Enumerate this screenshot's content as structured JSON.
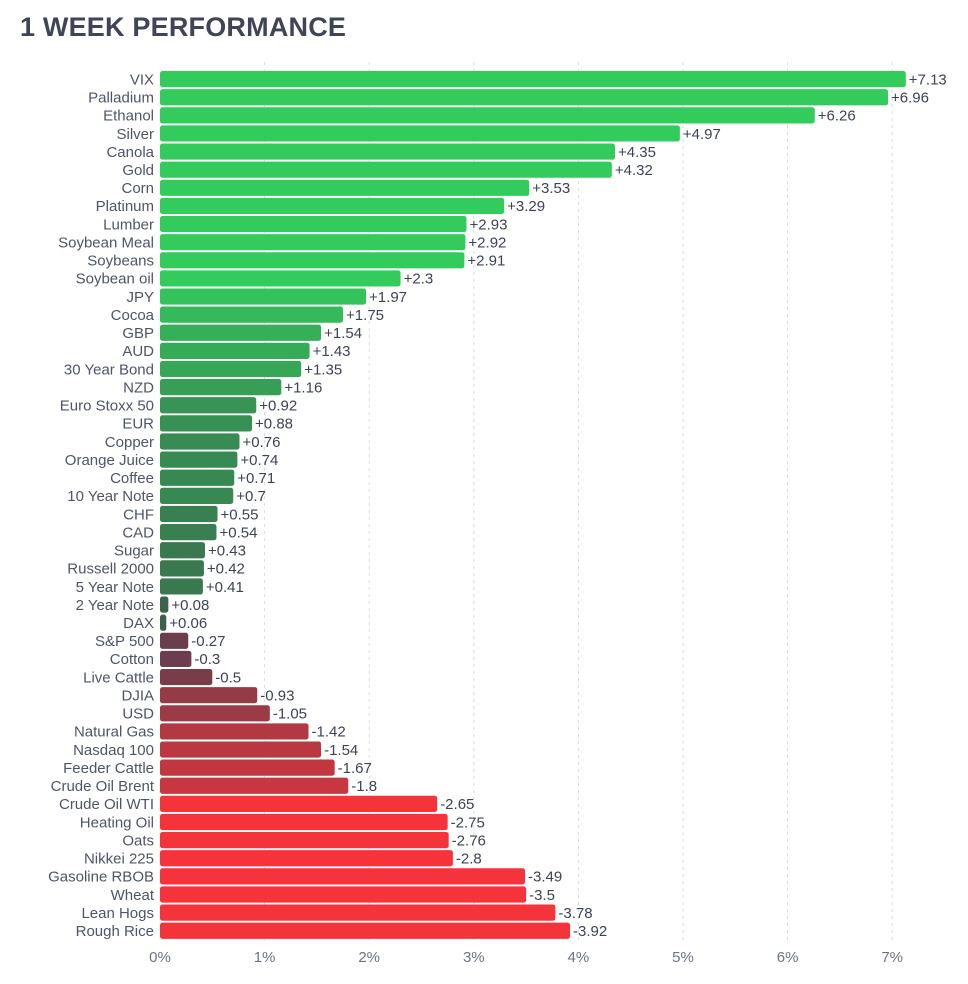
{
  "title": "1 WEEK PERFORMANCE",
  "chart_data": {
    "type": "bar",
    "orientation": "horizontal",
    "title": "1 WEEK PERFORMANCE",
    "xlabel": "",
    "ylabel": "",
    "xlim": [
      0,
      7.5
    ],
    "ticks": [
      0,
      1,
      2,
      3,
      4,
      5,
      6,
      7
    ],
    "tick_labels": [
      "0%",
      "1%",
      "2%",
      "3%",
      "4%",
      "5%",
      "6%",
      "7%"
    ],
    "grid": true,
    "colors": {
      "positive_high": "#33cc5c",
      "positive_low": "#3c5a4c",
      "negative_low": "#55404f",
      "negative_high": "#f5333a"
    },
    "categories": [
      "VIX",
      "Palladium",
      "Ethanol",
      "Silver",
      "Canola",
      "Gold",
      "Corn",
      "Platinum",
      "Lumber",
      "Soybean Meal",
      "Soybeans",
      "Soybean oil",
      "JPY",
      "Cocoa",
      "GBP",
      "AUD",
      "30 Year Bond",
      "NZD",
      "Euro Stoxx 50",
      "EUR",
      "Copper",
      "Orange Juice",
      "Coffee",
      "10 Year Note",
      "CHF",
      "CAD",
      "Sugar",
      "Russell 2000",
      "5 Year Note",
      "2 Year Note",
      "DAX",
      "S&P 500",
      "Cotton",
      "Live Cattle",
      "DJIA",
      "USD",
      "Natural Gas",
      "Nasdaq 100",
      "Feeder Cattle",
      "Crude Oil Brent",
      "Crude Oil WTI",
      "Heating Oil",
      "Oats",
      "Nikkei 225",
      "Gasoline RBOB",
      "Wheat",
      "Lean Hogs",
      "Rough Rice"
    ],
    "values": [
      7.13,
      6.96,
      6.26,
      4.97,
      4.35,
      4.32,
      3.53,
      3.29,
      2.93,
      2.92,
      2.91,
      2.3,
      1.97,
      1.75,
      1.54,
      1.43,
      1.35,
      1.16,
      0.92,
      0.88,
      0.76,
      0.74,
      0.71,
      0.7,
      0.55,
      0.54,
      0.43,
      0.42,
      0.41,
      0.08,
      0.06,
      -0.27,
      -0.3,
      -0.5,
      -0.93,
      -1.05,
      -1.42,
      -1.54,
      -1.67,
      -1.8,
      -2.65,
      -2.75,
      -2.76,
      -2.8,
      -3.49,
      -3.5,
      -3.78,
      -3.92
    ],
    "value_labels": [
      "+7.13",
      "+6.96",
      "+6.26",
      "+4.97",
      "+4.35",
      "+4.32",
      "+3.53",
      "+3.29",
      "+2.93",
      "+2.92",
      "+2.91",
      "+2.3",
      "+1.97",
      "+1.75",
      "+1.54",
      "+1.43",
      "+1.35",
      "+1.16",
      "+0.92",
      "+0.88",
      "+0.76",
      "+0.74",
      "+0.71",
      "+0.7",
      "+0.55",
      "+0.54",
      "+0.43",
      "+0.42",
      "+0.41",
      "+0.08",
      "+0.06",
      "-0.27",
      "-0.3",
      "-0.5",
      "-0.93",
      "-1.05",
      "-1.42",
      "-1.54",
      "-1.67",
      "-1.8",
      "-2.65",
      "-2.75",
      "-2.76",
      "-2.8",
      "-3.49",
      "-3.5",
      "-3.78",
      "-3.92"
    ]
  }
}
